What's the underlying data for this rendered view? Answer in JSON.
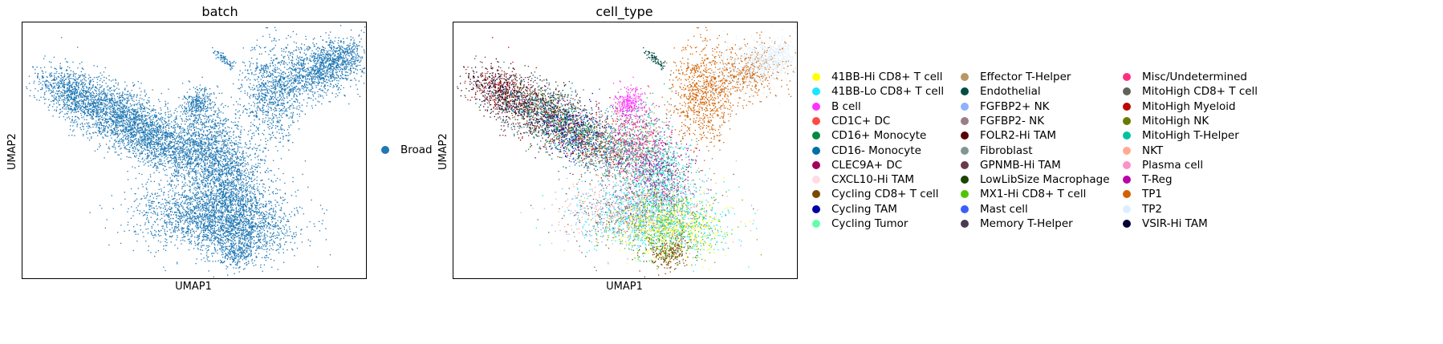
{
  "chart_data": [
    {
      "type": "scatter",
      "title": "batch",
      "xlabel": "UMAP1",
      "ylabel": "UMAP2",
      "legend": [
        {
          "label": "Broad",
          "color": "#1f77b4"
        }
      ]
    },
    {
      "type": "scatter",
      "title": "cell_type",
      "xlabel": "UMAP1",
      "ylabel": "UMAP2",
      "legend": [
        {
          "label": "41BB-Hi CD8+ T cell",
          "color": "#ffff00"
        },
        {
          "label": "41BB-Lo CD8+ T cell",
          "color": "#1ce6ff"
        },
        {
          "label": "B cell",
          "color": "#ff34ff"
        },
        {
          "label": "CD1C+ DC",
          "color": "#ff4a46"
        },
        {
          "label": "CD16+ Monocyte",
          "color": "#008941"
        },
        {
          "label": "CD16- Monocyte",
          "color": "#006fa6"
        },
        {
          "label": "CLEC9A+ DC",
          "color": "#a30059"
        },
        {
          "label": "CXCL10-Hi TAM",
          "color": "#ffdbe5"
        },
        {
          "label": "Cycling CD8+ T cell",
          "color": "#7a4900"
        },
        {
          "label": "Cycling TAM",
          "color": "#0000a6"
        },
        {
          "label": "Cycling Tumor",
          "color": "#63ffac"
        },
        {
          "label": "Effector T-Helper",
          "color": "#b79762"
        },
        {
          "label": "Endothelial",
          "color": "#004d43"
        },
        {
          "label": "FGFBP2+ NK",
          "color": "#8fb0ff"
        },
        {
          "label": "FGFBP2- NK",
          "color": "#997d87"
        },
        {
          "label": "FOLR2-Hi TAM",
          "color": "#5a0007"
        },
        {
          "label": "Fibroblast",
          "color": "#809693"
        },
        {
          "label": "GPNMB-Hi TAM",
          "color": "#6a3a4c"
        },
        {
          "label": "LowLibSize Macrophage",
          "color": "#1b4400"
        },
        {
          "label": "MX1-Hi CD8+ T cell",
          "color": "#4fc601"
        },
        {
          "label": "Mast cell",
          "color": "#3b5dff"
        },
        {
          "label": "Memory T-Helper",
          "color": "#4a3b53"
        },
        {
          "label": "Misc/Undetermined",
          "color": "#ff2f80"
        },
        {
          "label": "MitoHigh CD8+ T cell",
          "color": "#61615a"
        },
        {
          "label": "MitoHigh Myeloid",
          "color": "#ba0900"
        },
        {
          "label": "MitoHigh NK",
          "color": "#6b7900"
        },
        {
          "label": "MitoHigh T-Helper",
          "color": "#00c2a0"
        },
        {
          "label": "NKT",
          "color": "#ffaa92"
        },
        {
          "label": "Plasma cell",
          "color": "#ff90c9"
        },
        {
          "label": "T-Reg",
          "color": "#b903aa"
        },
        {
          "label": "TP1",
          "color": "#d16100"
        },
        {
          "label": "TP2",
          "color": "#ddefff"
        },
        {
          "label": "VSIR-Hi TAM",
          "color": "#000035"
        }
      ]
    }
  ]
}
